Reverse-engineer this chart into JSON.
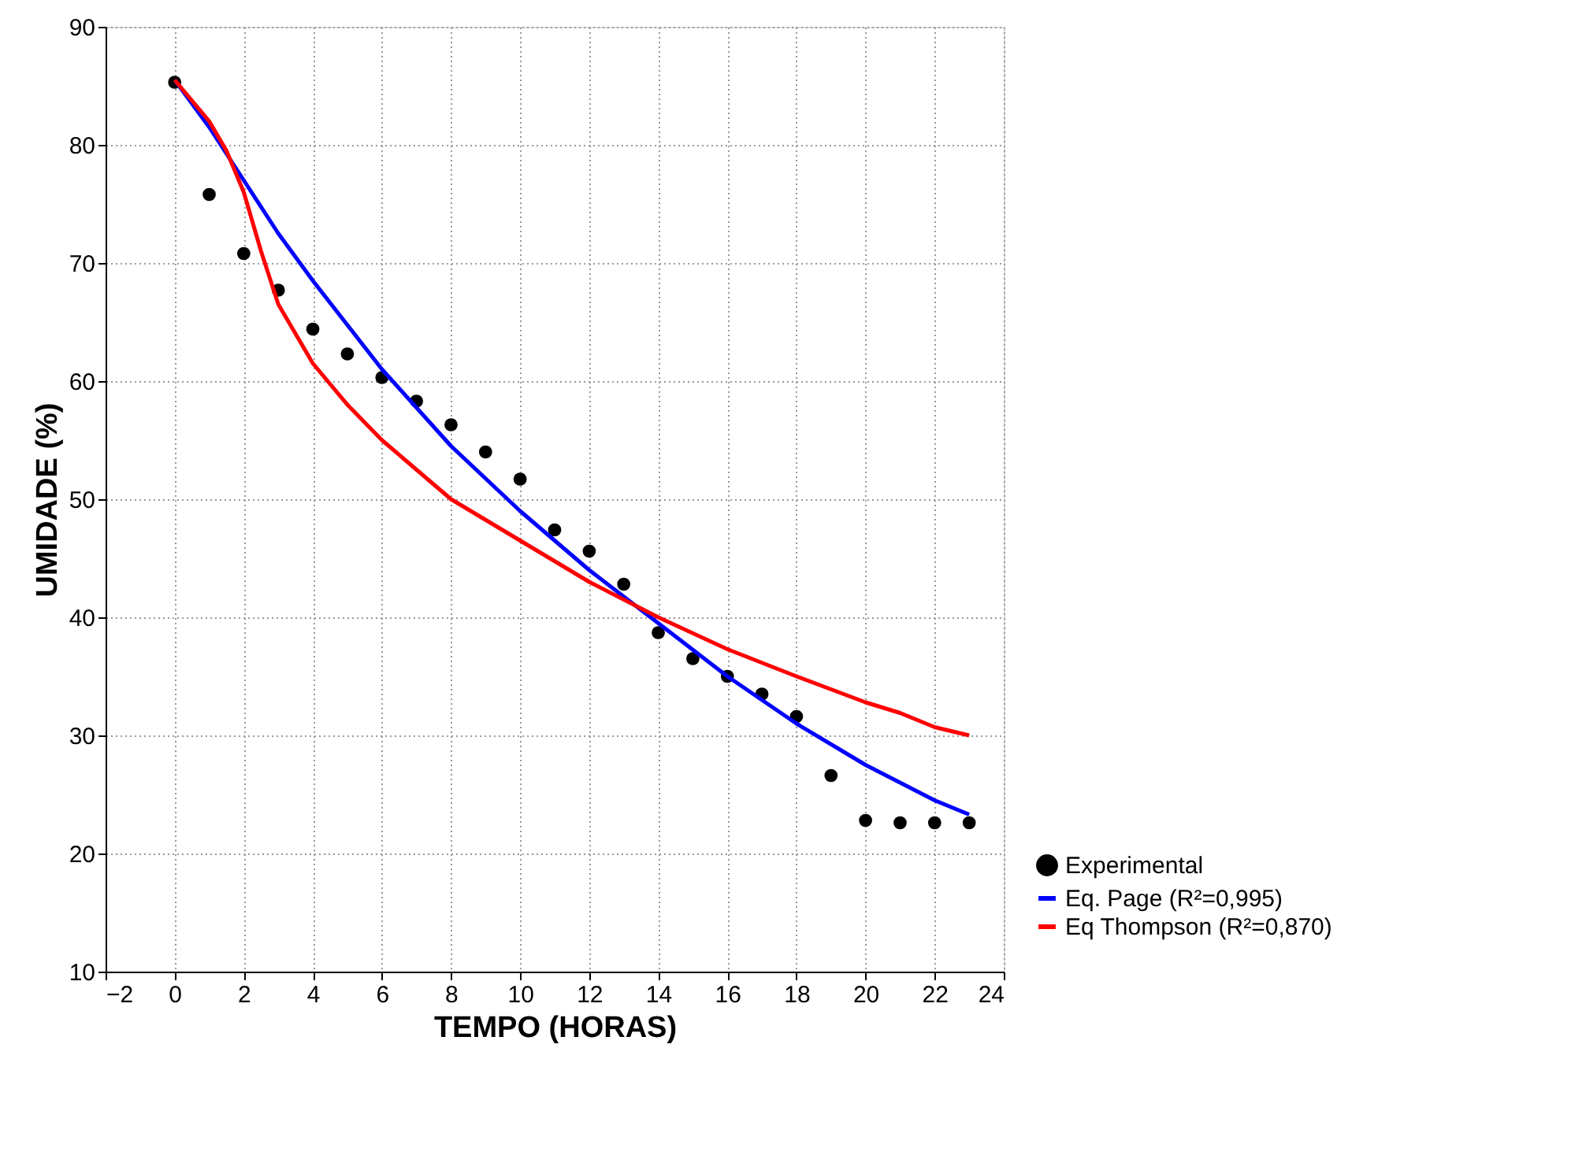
{
  "chart_data": {
    "type": "line",
    "xlabel": "TEMPO (HORAS)",
    "ylabel": "UMIDADE (%)",
    "xlim": [
      -2,
      24
    ],
    "xticks": [
      -2,
      0,
      2,
      4,
      6,
      8,
      10,
      12,
      14,
      16,
      18,
      20,
      22,
      24
    ],
    "ylim": [
      10,
      90
    ],
    "yticks": [
      10,
      20,
      30,
      40,
      50,
      60,
      70,
      80,
      90
    ],
    "grid": true,
    "legend": "bottom right",
    "series": [
      {
        "name": "Experimental",
        "type": "scatter",
        "marker": "circle",
        "color": "#000000",
        "x": [
          0,
          1,
          2,
          3,
          4,
          5,
          6,
          7,
          8,
          9,
          10,
          11,
          12,
          13,
          14,
          15,
          16,
          17,
          18,
          19,
          20,
          21,
          22,
          23
        ],
        "values": [
          85.3,
          75.8,
          70.8,
          67.7,
          64.4,
          62.3,
          60.3,
          58.3,
          56.3,
          54,
          51.7,
          47.4,
          45.6,
          42.8,
          38.7,
          36.5,
          35,
          33.5,
          31.6,
          26.6,
          22.8,
          22.6,
          22.6,
          22.6
        ]
      },
      {
        "name": "Eq. Page (R²=0,995)",
        "line_style": "solid",
        "color": "#0000ff",
        "x": [
          0,
          1,
          2,
          3,
          4,
          6,
          8,
          10,
          12,
          14,
          16,
          18,
          20,
          22,
          23
        ],
        "values": [
          85.5,
          81.5,
          77,
          72.5,
          68.5,
          61,
          54.5,
          49,
          44,
          39.5,
          35,
          31,
          27.5,
          24.5,
          23.3
        ]
      },
      {
        "name": "Eq Thompson (R²=0,870)",
        "line_style": "solid",
        "color": "#ff0000",
        "x": [
          0,
          1,
          1.5,
          2,
          2.5,
          3,
          4,
          5,
          6,
          8,
          10,
          12,
          14,
          16,
          18,
          20,
          21,
          22,
          23
        ],
        "values": [
          85.5,
          82,
          79.5,
          76,
          71,
          66.5,
          61.5,
          58,
          55,
          50,
          46.5,
          43,
          40,
          37.3,
          35,
          32.8,
          31.9,
          30.7,
          30
        ]
      }
    ]
  }
}
